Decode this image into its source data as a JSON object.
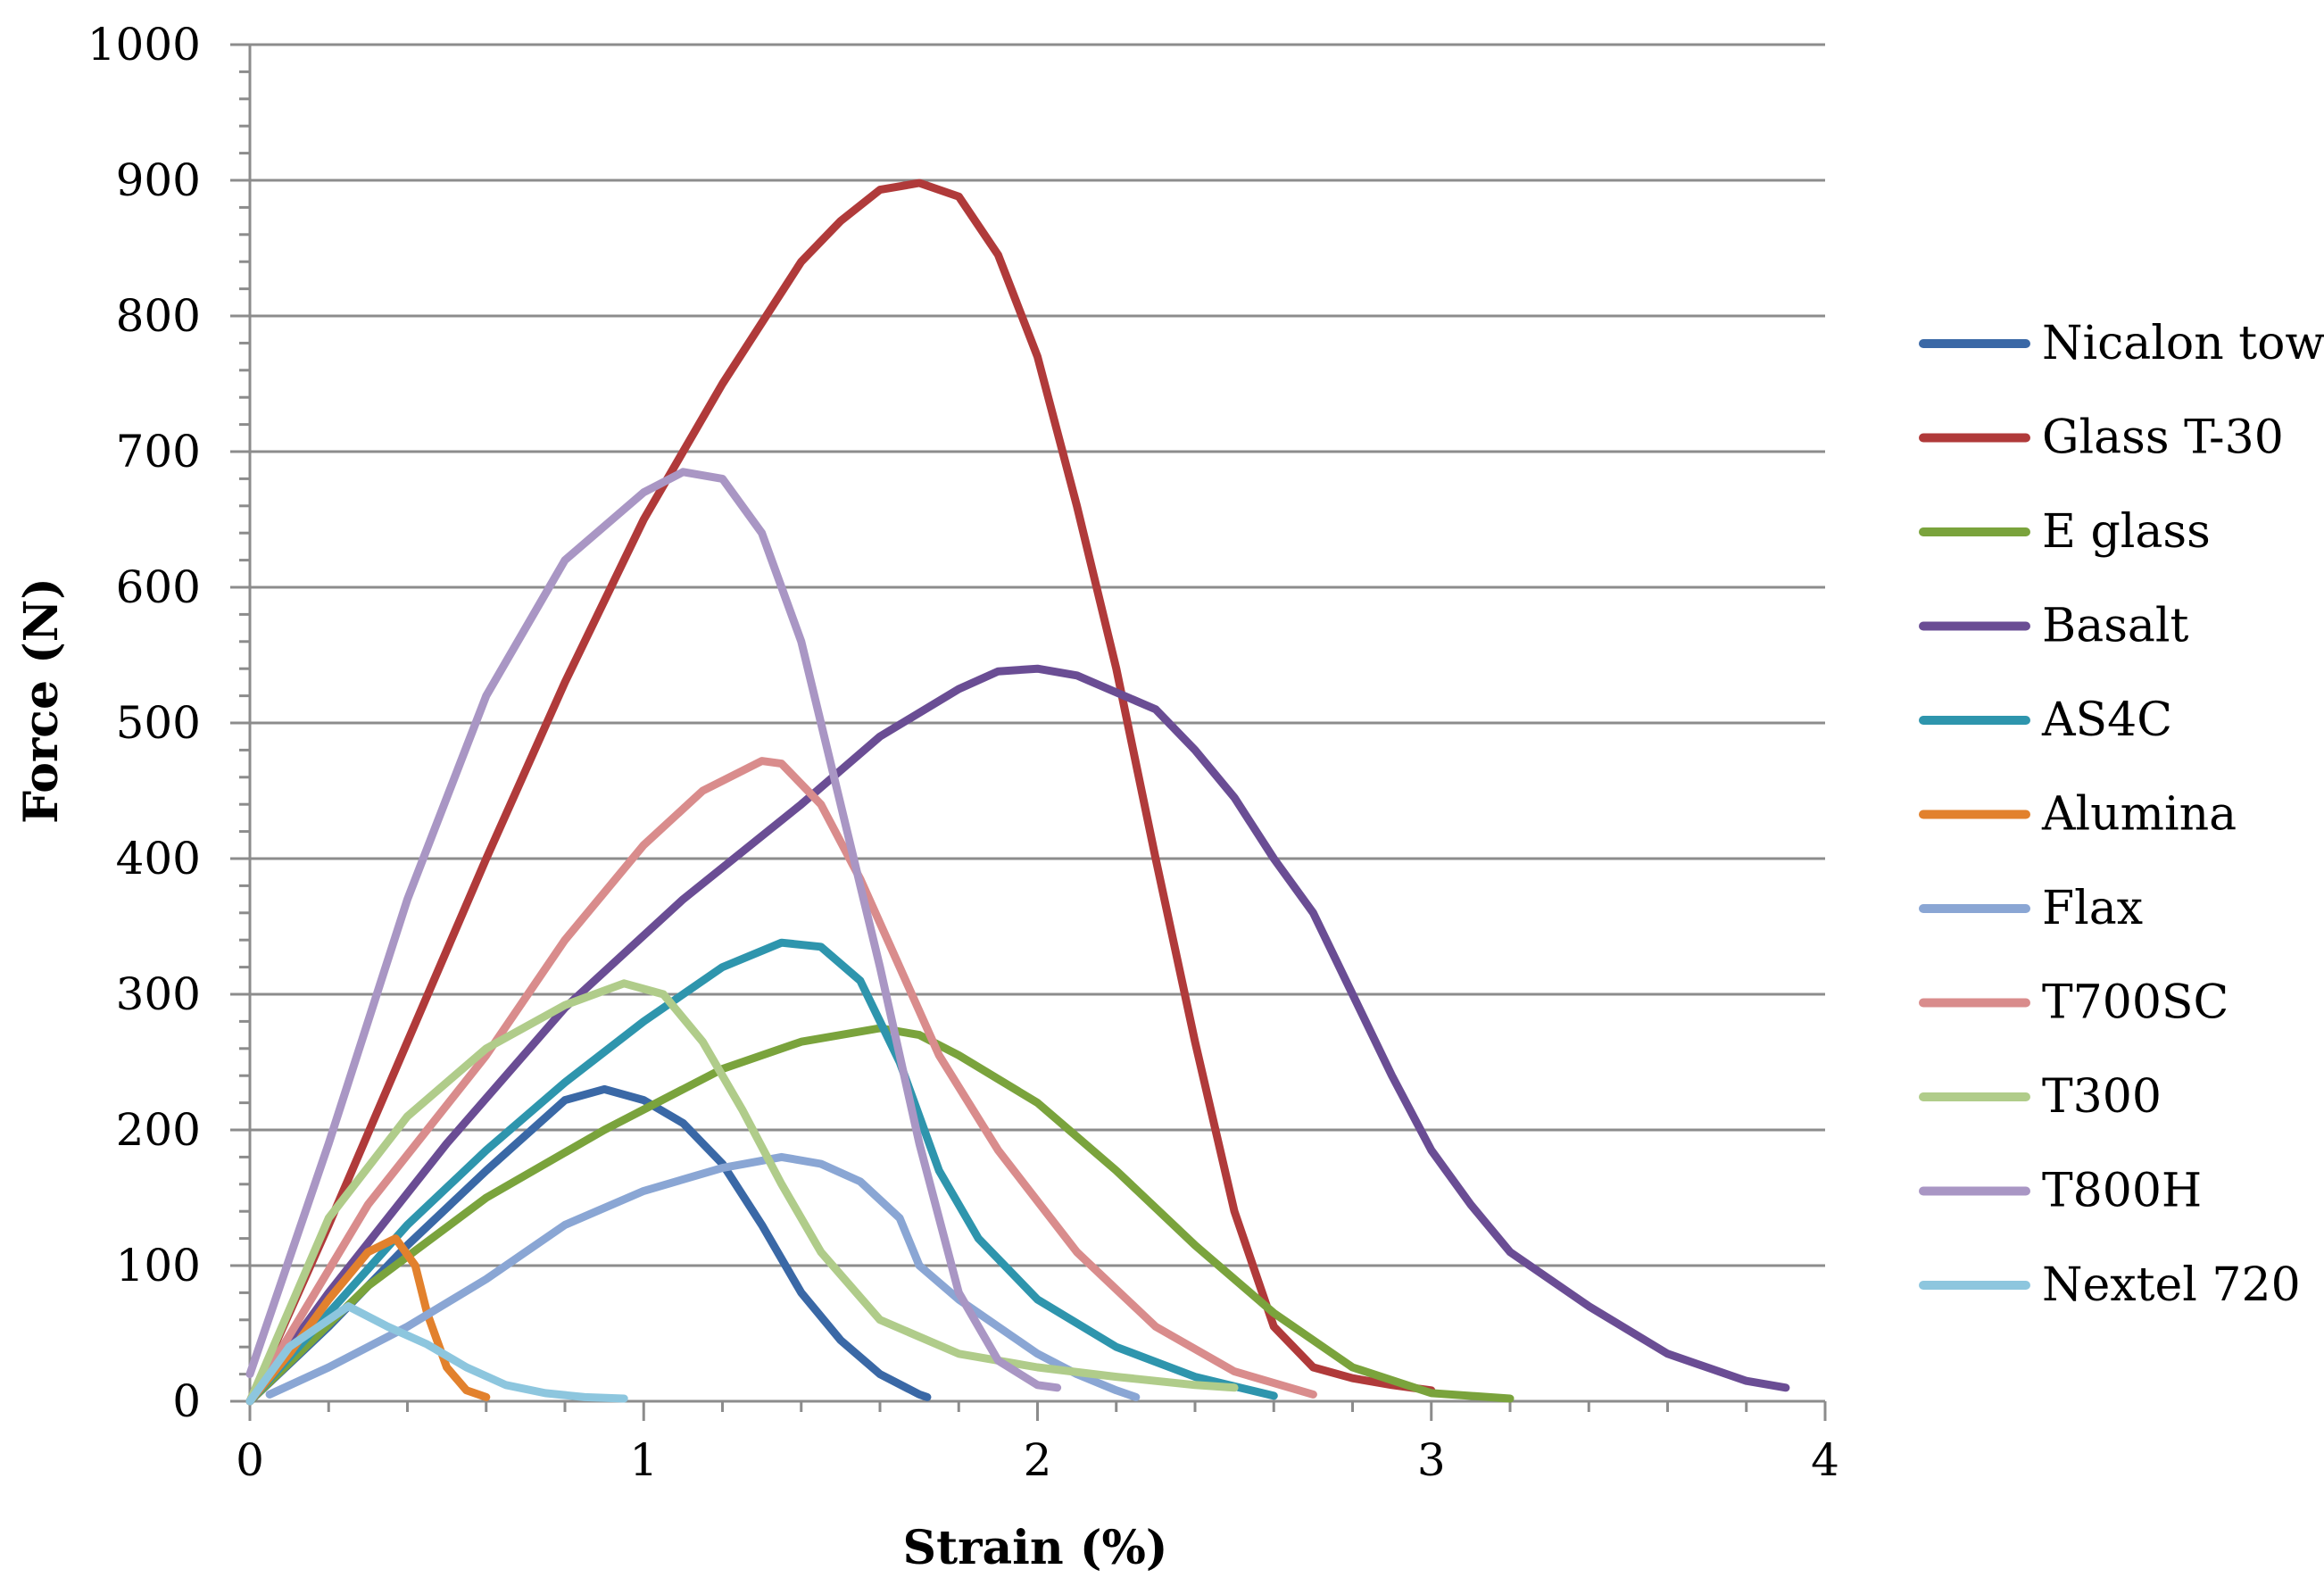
{
  "chart_data": {
    "type": "line",
    "title": "",
    "xlabel": "Strain (%)",
    "ylabel": "Force (N)",
    "xlim": [
      0,
      4
    ],
    "ylim": [
      0,
      1000
    ],
    "x_ticks": [
      0,
      1,
      2,
      3,
      4
    ],
    "y_ticks": [
      0,
      100,
      200,
      300,
      400,
      500,
      600,
      700,
      800,
      900,
      1000
    ],
    "grid": "horizontal",
    "legend": "right",
    "series": [
      {
        "name": "Nicalon tow",
        "color": "#3a68a6",
        "points": [
          [
            0,
            0
          ],
          [
            0.2,
            55
          ],
          [
            0.4,
            115
          ],
          [
            0.6,
            170
          ],
          [
            0.8,
            222
          ],
          [
            0.9,
            230
          ],
          [
            1.0,
            222
          ],
          [
            1.1,
            205
          ],
          [
            1.2,
            175
          ],
          [
            1.3,
            130
          ],
          [
            1.4,
            80
          ],
          [
            1.5,
            45
          ],
          [
            1.6,
            20
          ],
          [
            1.7,
            5
          ],
          [
            1.72,
            3
          ]
        ]
      },
      {
        "name": "Glass T-30",
        "color": "#b03a3a",
        "points": [
          [
            0,
            0
          ],
          [
            0.2,
            130
          ],
          [
            0.4,
            265
          ],
          [
            0.6,
            400
          ],
          [
            0.8,
            530
          ],
          [
            1.0,
            650
          ],
          [
            1.2,
            750
          ],
          [
            1.4,
            840
          ],
          [
            1.5,
            870
          ],
          [
            1.6,
            893
          ],
          [
            1.7,
            898
          ],
          [
            1.8,
            888
          ],
          [
            1.9,
            845
          ],
          [
            2.0,
            770
          ],
          [
            2.1,
            660
          ],
          [
            2.2,
            540
          ],
          [
            2.3,
            400
          ],
          [
            2.4,
            265
          ],
          [
            2.5,
            140
          ],
          [
            2.6,
            55
          ],
          [
            2.7,
            25
          ],
          [
            2.8,
            17
          ],
          [
            2.9,
            12
          ],
          [
            3.0,
            8
          ]
        ]
      },
      {
        "name": "E glass",
        "color": "#7aa33c",
        "points": [
          [
            0,
            0
          ],
          [
            0.3,
            85
          ],
          [
            0.6,
            150
          ],
          [
            0.9,
            200
          ],
          [
            1.2,
            245
          ],
          [
            1.4,
            265
          ],
          [
            1.6,
            275
          ],
          [
            1.7,
            270
          ],
          [
            1.8,
            255
          ],
          [
            2.0,
            220
          ],
          [
            2.2,
            170
          ],
          [
            2.4,
            115
          ],
          [
            2.6,
            65
          ],
          [
            2.8,
            25
          ],
          [
            3.0,
            6
          ],
          [
            3.2,
            2
          ]
        ]
      },
      {
        "name": "Basalt",
        "color": "#6a4d94",
        "points": [
          [
            0,
            0
          ],
          [
            0.2,
            80
          ],
          [
            0.5,
            190
          ],
          [
            0.8,
            290
          ],
          [
            1.1,
            370
          ],
          [
            1.4,
            440
          ],
          [
            1.6,
            490
          ],
          [
            1.8,
            525
          ],
          [
            1.9,
            538
          ],
          [
            2.0,
            540
          ],
          [
            2.1,
            535
          ],
          [
            2.3,
            510
          ],
          [
            2.4,
            480
          ],
          [
            2.5,
            445
          ],
          [
            2.6,
            400
          ],
          [
            2.7,
            360
          ],
          [
            2.8,
            300
          ],
          [
            2.9,
            240
          ],
          [
            3.0,
            185
          ],
          [
            3.1,
            145
          ],
          [
            3.2,
            110
          ],
          [
            3.4,
            70
          ],
          [
            3.6,
            35
          ],
          [
            3.8,
            15
          ],
          [
            3.9,
            10
          ]
        ]
      },
      {
        "name": "AS4C",
        "color": "#2e95ad",
        "points": [
          [
            0,
            0
          ],
          [
            0.2,
            65
          ],
          [
            0.4,
            130
          ],
          [
            0.6,
            185
          ],
          [
            0.8,
            235
          ],
          [
            1.0,
            280
          ],
          [
            1.2,
            320
          ],
          [
            1.35,
            338
          ],
          [
            1.45,
            335
          ],
          [
            1.55,
            310
          ],
          [
            1.65,
            250
          ],
          [
            1.75,
            170
          ],
          [
            1.85,
            120
          ],
          [
            2.0,
            75
          ],
          [
            2.2,
            40
          ],
          [
            2.4,
            18
          ],
          [
            2.6,
            4
          ]
        ]
      },
      {
        "name": "Alumina",
        "color": "#e2812d",
        "points": [
          [
            0,
            0
          ],
          [
            0.1,
            35
          ],
          [
            0.2,
            75
          ],
          [
            0.3,
            110
          ],
          [
            0.37,
            120
          ],
          [
            0.42,
            100
          ],
          [
            0.45,
            65
          ],
          [
            0.5,
            25
          ],
          [
            0.55,
            8
          ],
          [
            0.6,
            3
          ]
        ]
      },
      {
        "name": "Flax",
        "color": "#8aa6d4",
        "points": [
          [
            0.05,
            5
          ],
          [
            0.2,
            25
          ],
          [
            0.4,
            55
          ],
          [
            0.6,
            90
          ],
          [
            0.8,
            130
          ],
          [
            1.0,
            155
          ],
          [
            1.2,
            172
          ],
          [
            1.35,
            180
          ],
          [
            1.45,
            175
          ],
          [
            1.55,
            162
          ],
          [
            1.65,
            135
          ],
          [
            1.7,
            100
          ],
          [
            1.8,
            75
          ],
          [
            1.9,
            55
          ],
          [
            2.0,
            35
          ],
          [
            2.1,
            20
          ],
          [
            2.2,
            8
          ],
          [
            2.25,
            3
          ]
        ]
      },
      {
        "name": "T700SC",
        "color": "#d98c8c",
        "points": [
          [
            0,
            0
          ],
          [
            0.3,
            145
          ],
          [
            0.6,
            255
          ],
          [
            0.8,
            340
          ],
          [
            1.0,
            410
          ],
          [
            1.15,
            450
          ],
          [
            1.3,
            472
          ],
          [
            1.35,
            470
          ],
          [
            1.45,
            440
          ],
          [
            1.55,
            385
          ],
          [
            1.65,
            320
          ],
          [
            1.75,
            255
          ],
          [
            1.9,
            185
          ],
          [
            2.1,
            110
          ],
          [
            2.3,
            55
          ],
          [
            2.5,
            22
          ],
          [
            2.7,
            5
          ]
        ]
      },
      {
        "name": "T300",
        "color": "#b0cc8a",
        "points": [
          [
            0,
            0
          ],
          [
            0.2,
            135
          ],
          [
            0.4,
            210
          ],
          [
            0.6,
            260
          ],
          [
            0.8,
            292
          ],
          [
            0.95,
            308
          ],
          [
            1.05,
            300
          ],
          [
            1.15,
            265
          ],
          [
            1.25,
            215
          ],
          [
            1.35,
            160
          ],
          [
            1.45,
            110
          ],
          [
            1.6,
            60
          ],
          [
            1.8,
            35
          ],
          [
            2.0,
            25
          ],
          [
            2.2,
            18
          ],
          [
            2.4,
            12
          ],
          [
            2.5,
            10
          ]
        ]
      },
      {
        "name": "T800H",
        "color": "#a996c4",
        "points": [
          [
            0,
            20
          ],
          [
            0.2,
            190
          ],
          [
            0.4,
            370
          ],
          [
            0.6,
            520
          ],
          [
            0.8,
            620
          ],
          [
            1.0,
            670
          ],
          [
            1.1,
            685
          ],
          [
            1.2,
            680
          ],
          [
            1.3,
            640
          ],
          [
            1.4,
            560
          ],
          [
            1.5,
            440
          ],
          [
            1.6,
            320
          ],
          [
            1.7,
            190
          ],
          [
            1.8,
            80
          ],
          [
            1.9,
            30
          ],
          [
            2.0,
            12
          ],
          [
            2.05,
            10
          ]
        ]
      },
      {
        "name": "Nextel 720",
        "color": "#8dc6de",
        "points": [
          [
            0,
            0
          ],
          [
            0.1,
            40
          ],
          [
            0.25,
            70
          ],
          [
            0.35,
            55
          ],
          [
            0.45,
            42
          ],
          [
            0.55,
            25
          ],
          [
            0.65,
            12
          ],
          [
            0.75,
            6
          ],
          [
            0.85,
            3
          ],
          [
            0.95,
            2
          ]
        ]
      }
    ]
  }
}
